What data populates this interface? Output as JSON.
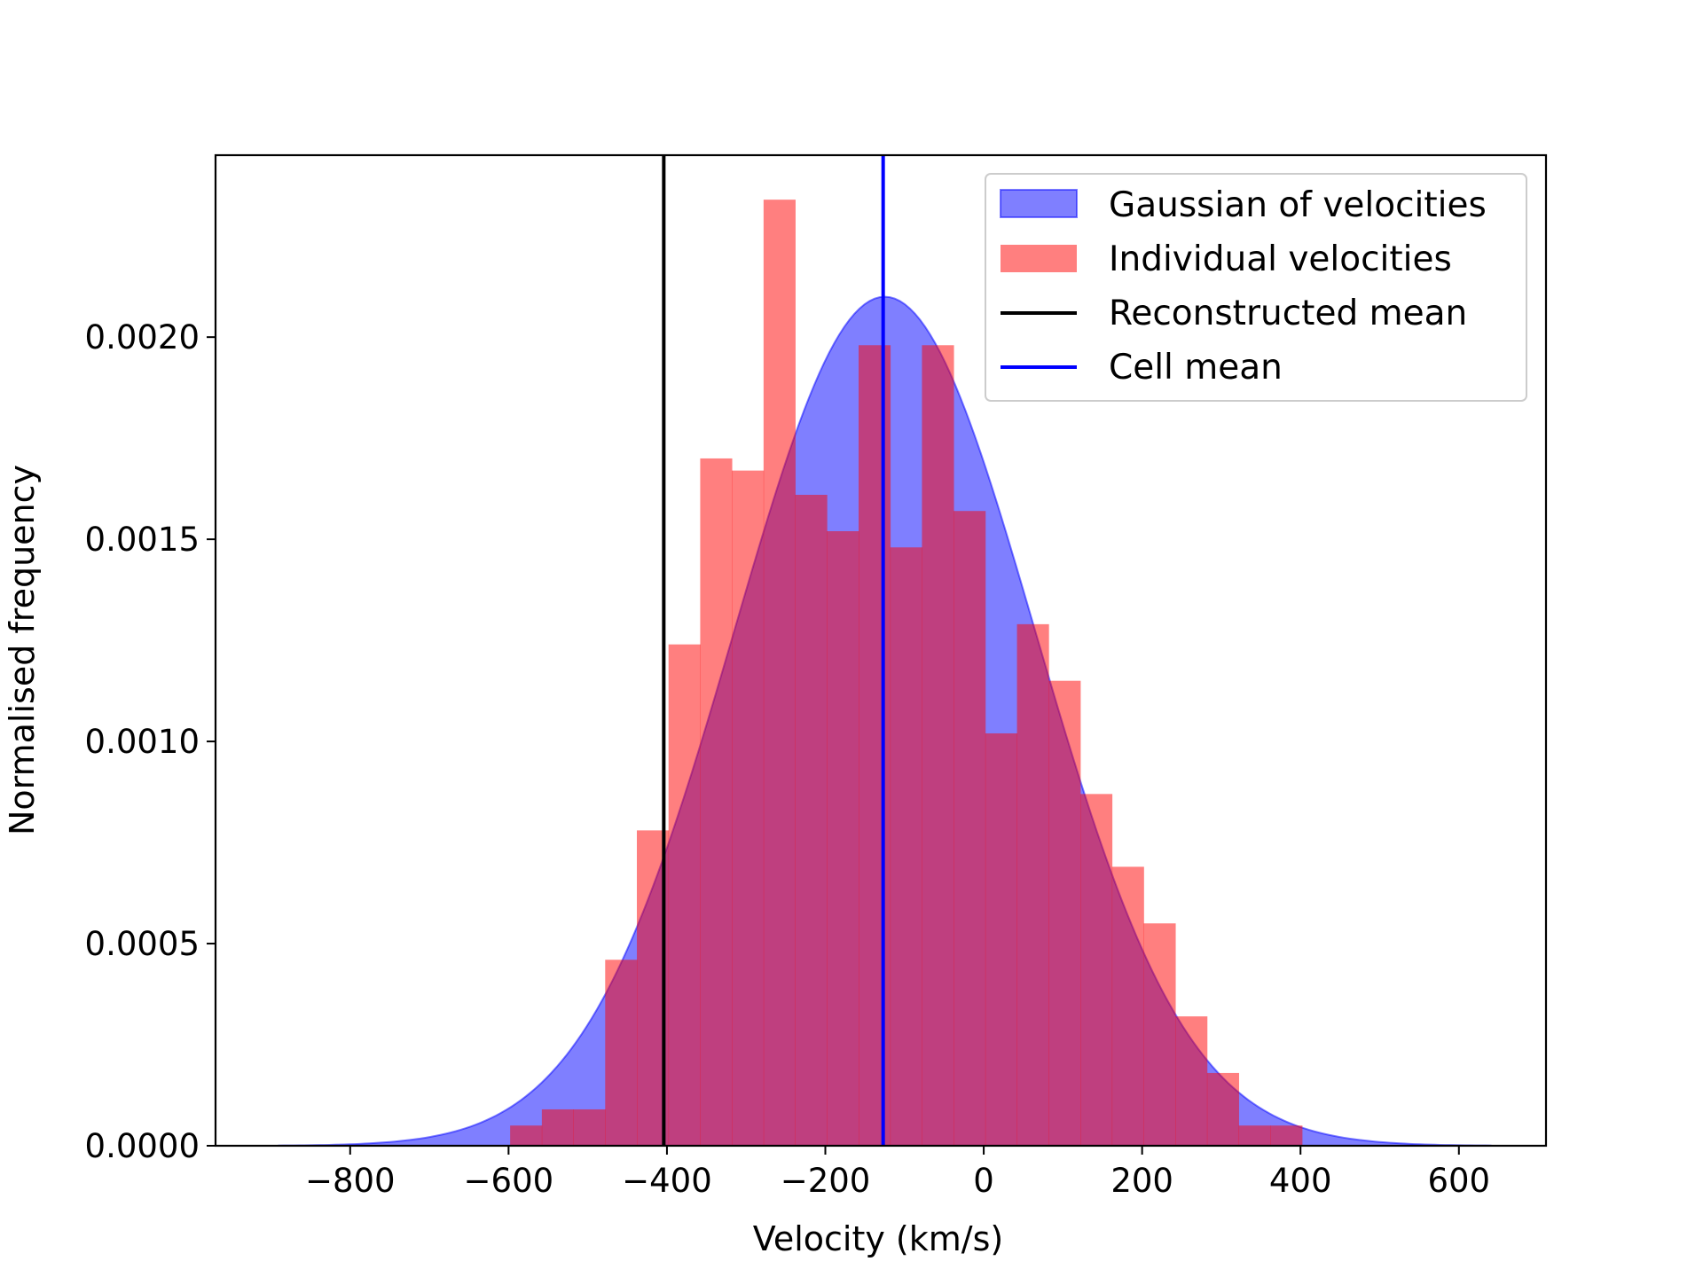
{
  "chart_data": {
    "type": "bar",
    "title": "",
    "xlabel": "Velocity (km/s)",
    "ylabel": "Normalised frequency",
    "xlim": [
      -970,
      710
    ],
    "ylim": [
      0,
      0.00245
    ],
    "x_ticks": [
      -800,
      -600,
      -400,
      -200,
      0,
      200,
      400,
      600
    ],
    "x_tick_labels": [
      "−800",
      "−600",
      "−400",
      "−200",
      "0",
      "200",
      "400",
      "600"
    ],
    "y_ticks": [
      0,
      0.0005,
      0.001,
      0.0015,
      0.002
    ],
    "y_tick_labels": [
      "0.0000",
      "0.0005",
      "0.0010",
      "0.0015",
      "0.0020"
    ],
    "grid": false,
    "legend_position": "top-right",
    "series": [
      {
        "name": "Gaussian of velocities",
        "kind": "filled-curve",
        "color": "#0000ff",
        "opacity": 0.5,
        "mean": -125,
        "sigma": 190,
        "peak": 0.0021,
        "x_range": [
          -890,
          640
        ]
      },
      {
        "name": "Individual velocities",
        "kind": "histogram",
        "color": "#ff0000",
        "opacity": 0.5,
        "bin_edges": [
          -598,
          -558,
          -518,
          -478,
          -438,
          -398,
          -358,
          -318,
          -278,
          -238,
          -198,
          -158,
          -118,
          -78,
          -38,
          2,
          42,
          82,
          122,
          162,
          202,
          242,
          282,
          322,
          362,
          402
        ],
        "values": [
          5e-05,
          9e-05,
          9e-05,
          0.00046,
          0.00078,
          0.00124,
          0.0017,
          0.00167,
          0.00234,
          0.00161,
          0.00152,
          0.00198,
          0.00148,
          0.00198,
          0.00157,
          0.00102,
          0.00129,
          0.00115,
          0.00087,
          0.00069,
          0.00055,
          0.00032,
          0.00018,
          5e-05,
          5e-05
        ]
      },
      {
        "name": "Reconstructed mean",
        "kind": "vline",
        "color": "#000000",
        "x": -404
      },
      {
        "name": "Cell mean",
        "kind": "vline",
        "color": "#0000ff",
        "x": -127
      }
    ]
  }
}
